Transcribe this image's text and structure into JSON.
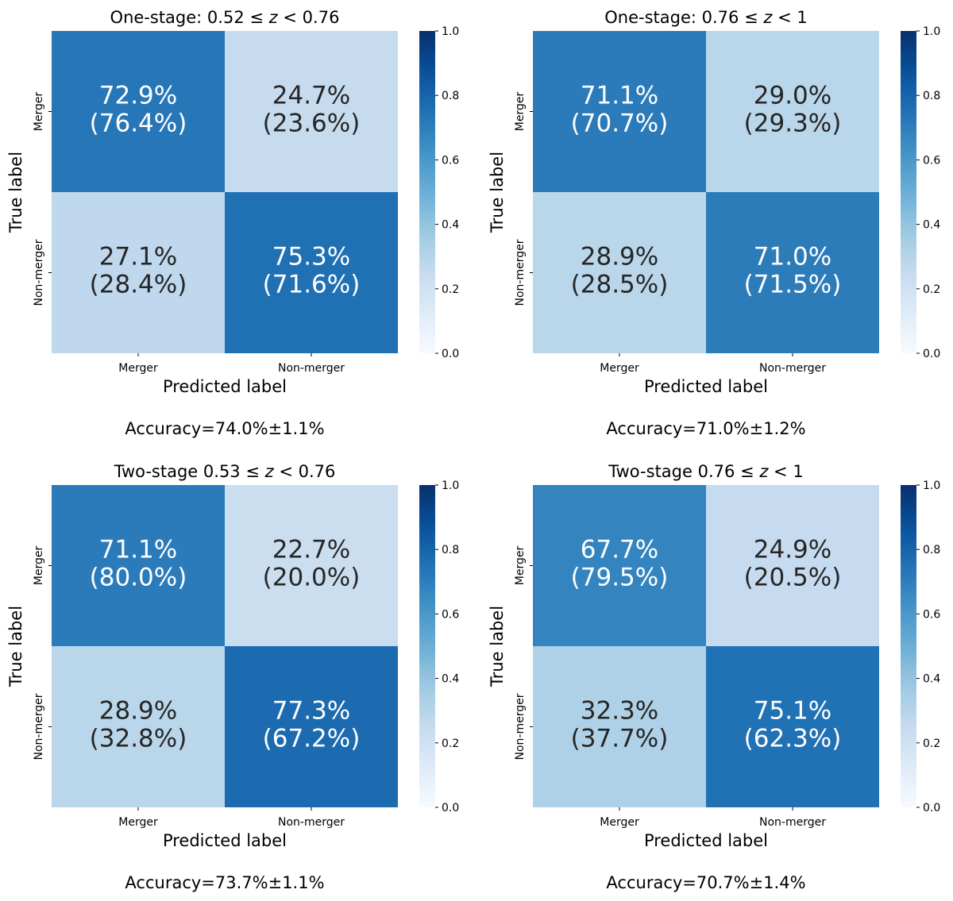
{
  "chart_data": [
    {
      "type": "heatmap",
      "title_prefix": "One-stage: ",
      "title_math": "0.52 ≤ z < 0.76",
      "title_parts": {
        "lo": "0.52",
        "hi": "0.76",
        "op1": "≤",
        "var": "z",
        "op2": "<"
      },
      "xlabel": "Predicted label",
      "ylabel": "True label",
      "x_categories": [
        "Merger",
        "Non-merger"
      ],
      "y_categories": [
        "Merger",
        "Non-merger"
      ],
      "values": [
        [
          0.729,
          0.247
        ],
        [
          0.271,
          0.753
        ]
      ],
      "cell_text": [
        [
          "72.9%",
          "24.7%"
        ],
        [
          "27.1%",
          "75.3%"
        ]
      ],
      "cell_subtext": [
        [
          "(76.4%)",
          "(23.6%)"
        ],
        [
          "(28.4%)",
          "(71.6%)"
        ]
      ],
      "colorbar": {
        "min": 0.0,
        "max": 1.0,
        "ticks": [
          "0.0",
          "0.2",
          "0.4",
          "0.6",
          "0.8",
          "1.0"
        ]
      },
      "accuracy": "Accuracy=74.0%±1.1%"
    },
    {
      "type": "heatmap",
      "title_prefix": "One-stage: ",
      "title_math": "0.76 ≤ z < 1",
      "title_parts": {
        "lo": "0.76",
        "hi": "1",
        "op1": "≤",
        "var": "z",
        "op2": "<"
      },
      "xlabel": "Predicted label",
      "ylabel": "True label",
      "x_categories": [
        "Merger",
        "Non-merger"
      ],
      "y_categories": [
        "Merger",
        "Non-merger"
      ],
      "values": [
        [
          0.711,
          0.29
        ],
        [
          0.289,
          0.71
        ]
      ],
      "cell_text": [
        [
          "71.1%",
          "29.0%"
        ],
        [
          "28.9%",
          "71.0%"
        ]
      ],
      "cell_subtext": [
        [
          "(70.7%)",
          "(29.3%)"
        ],
        [
          "(28.5%)",
          "(71.5%)"
        ]
      ],
      "colorbar": {
        "min": 0.0,
        "max": 1.0,
        "ticks": [
          "0.0",
          "0.2",
          "0.4",
          "0.6",
          "0.8",
          "1.0"
        ]
      },
      "accuracy": "Accuracy=71.0%±1.2%"
    },
    {
      "type": "heatmap",
      "title_prefix": "Two-stage ",
      "title_math": "0.53 ≤ z < 0.76",
      "title_parts": {
        "lo": "0.53",
        "hi": "0.76",
        "op1": "≤",
        "var": "z",
        "op2": "<"
      },
      "xlabel": "Predicted label",
      "ylabel": "True label",
      "x_categories": [
        "Merger",
        "Non-merger"
      ],
      "y_categories": [
        "Merger",
        "Non-merger"
      ],
      "values": [
        [
          0.711,
          0.227
        ],
        [
          0.289,
          0.773
        ]
      ],
      "cell_text": [
        [
          "71.1%",
          "22.7%"
        ],
        [
          "28.9%",
          "77.3%"
        ]
      ],
      "cell_subtext": [
        [
          "(80.0%)",
          "(20.0%)"
        ],
        [
          "(32.8%)",
          "(67.2%)"
        ]
      ],
      "colorbar": {
        "min": 0.0,
        "max": 1.0,
        "ticks": [
          "0.0",
          "0.2",
          "0.4",
          "0.6",
          "0.8",
          "1.0"
        ]
      },
      "accuracy": "Accuracy=73.7%±1.1%"
    },
    {
      "type": "heatmap",
      "title_prefix": "Two-stage ",
      "title_math": "0.76 ≤ z < 1",
      "title_parts": {
        "lo": "0.76",
        "hi": "1",
        "op1": "≤",
        "var": "z",
        "op2": "<"
      },
      "xlabel": "Predicted label",
      "ylabel": "True label",
      "x_categories": [
        "Merger",
        "Non-merger"
      ],
      "y_categories": [
        "Merger",
        "Non-merger"
      ],
      "values": [
        [
          0.677,
          0.249
        ],
        [
          0.323,
          0.751
        ]
      ],
      "cell_text": [
        [
          "67.7%",
          "24.9%"
        ],
        [
          "32.3%",
          "75.1%"
        ]
      ],
      "cell_subtext": [
        [
          "(79.5%)",
          "(20.5%)"
        ],
        [
          "(37.7%)",
          "(62.3%)"
        ]
      ],
      "colorbar": {
        "min": 0.0,
        "max": 1.0,
        "ticks": [
          "0.0",
          "0.2",
          "0.4",
          "0.6",
          "0.8",
          "1.0"
        ]
      },
      "accuracy": "Accuracy=70.7%±1.4%"
    }
  ]
}
